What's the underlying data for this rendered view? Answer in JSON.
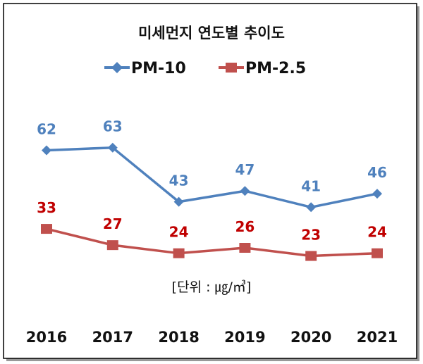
{
  "chart_data": {
    "type": "line",
    "title": "미세먼지 연도별 추이도",
    "unit_label": "[단위 : ㎍/㎥]",
    "categories": [
      "2016",
      "2017",
      "2018",
      "2019",
      "2020",
      "2021"
    ],
    "series": [
      {
        "name": "PM-10",
        "values": [
          62,
          63,
          43,
          47,
          41,
          46
        ],
        "color": "#4f81bd",
        "label_color": "#4f81bd",
        "marker": "diamond"
      },
      {
        "name": "PM-2.5",
        "values": [
          33,
          27,
          24,
          26,
          23,
          24
        ],
        "color": "#c0504d",
        "label_color": "#c00000",
        "marker": "square"
      }
    ],
    "ylim": [
      0,
      117
    ],
    "grid": false,
    "legend": "top",
    "data_labels": true
  }
}
